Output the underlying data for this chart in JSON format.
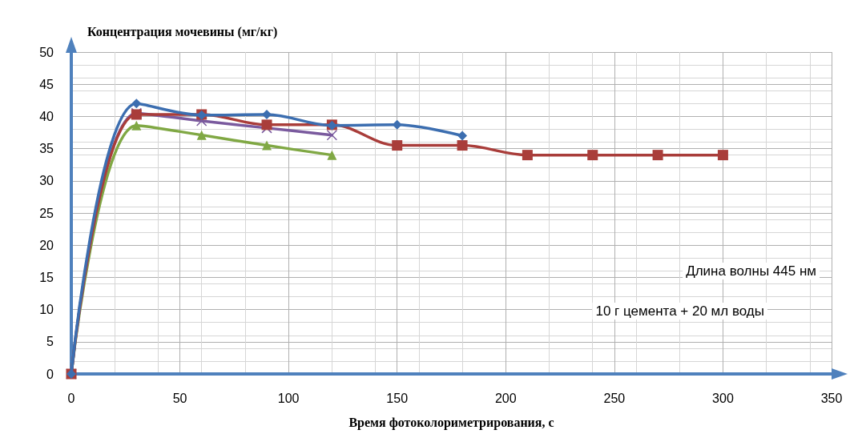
{
  "chart_data": {
    "type": "line",
    "ylabel": "Концентрация мочевины (мг/кг)",
    "xlabel": "Время фотоколориметрирования, с",
    "xlim": [
      0,
      350
    ],
    "xticks": [
      0,
      50,
      100,
      150,
      200,
      250,
      300,
      350
    ],
    "ylim": [
      0,
      50
    ],
    "yticks": [
      0,
      5,
      10,
      15,
      20,
      25,
      30,
      35,
      40,
      45,
      50
    ],
    "grid": true,
    "line_style": "solid",
    "series": [
      {
        "color": "#3c6eb0",
        "marker": "diamond",
        "x": [
          0,
          30,
          60,
          90,
          120,
          150,
          180
        ],
        "values": [
          0,
          42,
          40.2,
          40.3,
          38.6,
          38.7,
          37
        ]
      },
      {
        "color": "#a93d3a",
        "marker": "square",
        "x": [
          0,
          30,
          60,
          90,
          120,
          150,
          180,
          210,
          240,
          270,
          300
        ],
        "values": [
          0,
          40.3,
          40.3,
          38.7,
          38.7,
          35.5,
          35.5,
          34,
          34,
          34,
          34
        ]
      },
      {
        "color": "#7a5a9e",
        "marker": "cross",
        "x": [
          0,
          30,
          60,
          90,
          120
        ],
        "values": [
          0,
          40.5,
          39.3,
          38.2,
          37.1
        ]
      },
      {
        "color": "#80a844",
        "marker": "triangle",
        "x": [
          0,
          30,
          60,
          90,
          120
        ],
        "values": [
          0,
          38.6,
          37.1,
          35.5,
          34
        ]
      }
    ],
    "annotations": [
      "Длина волны 445 нм",
      "10 г цемента + 20 мл воды"
    ]
  }
}
